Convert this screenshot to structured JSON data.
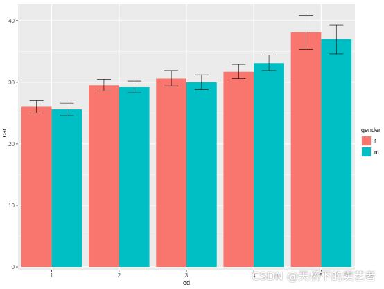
{
  "chart_data": {
    "type": "bar",
    "xlabel": "ed",
    "ylabel": "car",
    "categories": [
      "1",
      "2",
      "3",
      "4",
      "5"
    ],
    "series": [
      {
        "name": "f",
        "values": [
          26.0,
          29.5,
          30.6,
          31.7,
          38.1
        ],
        "error_low": [
          25.0,
          28.6,
          29.4,
          30.6,
          35.3
        ],
        "error_high": [
          27.0,
          30.5,
          31.9,
          32.9,
          40.8
        ]
      },
      {
        "name": "m",
        "values": [
          25.6,
          29.2,
          30.0,
          33.1,
          37.0
        ],
        "error_low": [
          24.6,
          28.3,
          28.8,
          31.9,
          34.6
        ],
        "error_high": [
          26.6,
          30.2,
          31.2,
          34.4,
          39.3
        ]
      }
    ],
    "yticks": [
      0,
      10,
      20,
      30,
      40
    ],
    "ylim": [
      0,
      42
    ],
    "grid": true,
    "legend": {
      "title": "gender",
      "position": "right"
    },
    "colors": {
      "f": "#F8766D",
      "m": "#00BFC4",
      "panel": "#EBEBEB",
      "grid": "#FFFFFF"
    }
  },
  "watermark": "CSDN @天桥下的卖艺者"
}
